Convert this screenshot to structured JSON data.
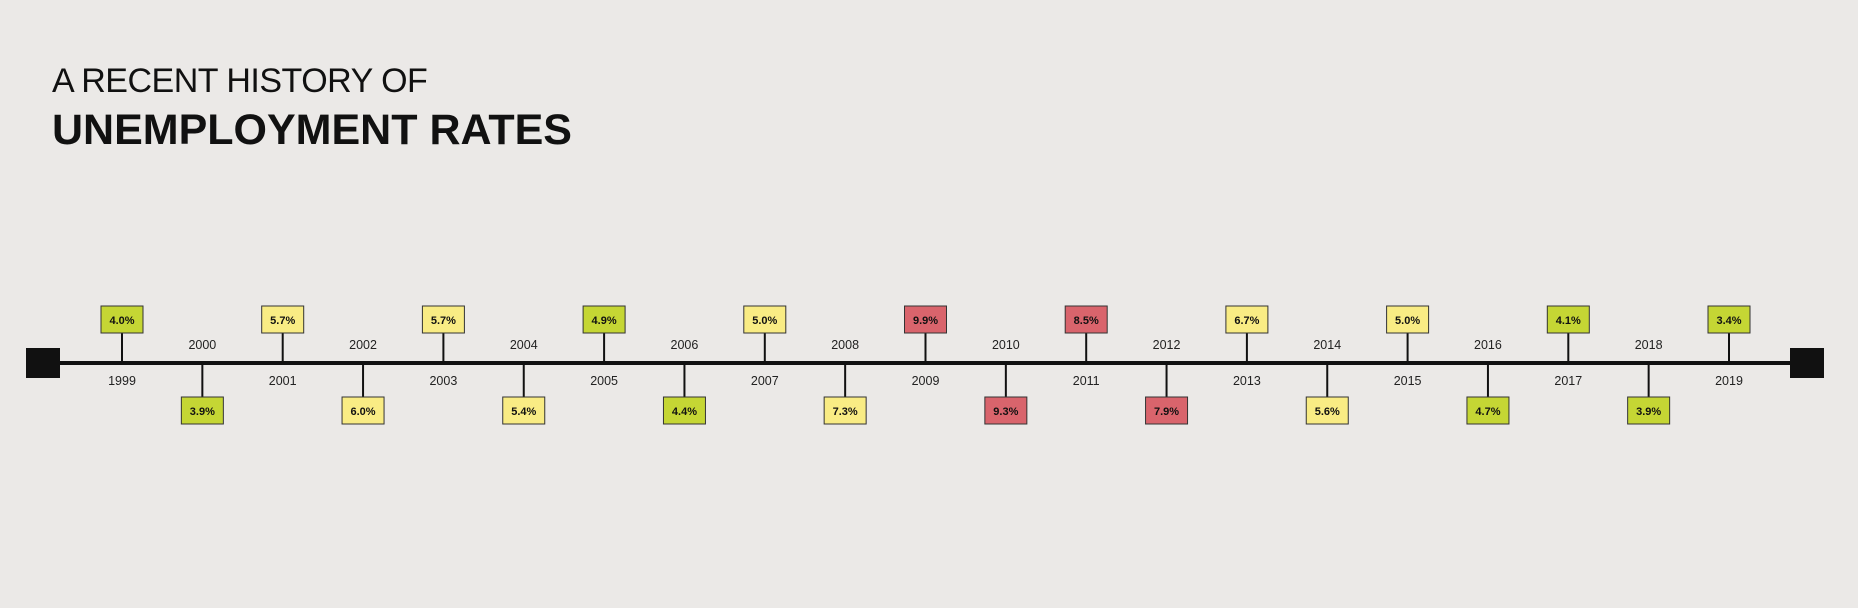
{
  "title": {
    "line1": "A RECENT HISTORY OF",
    "line2": "UNEMPLOYMENT RATES"
  },
  "colors": {
    "low": "#c5d634",
    "medium": "#f9ec84",
    "high": "#d9646c",
    "line": "#111111",
    "background": "#ebe9e7"
  },
  "chart_data": {
    "type": "timeline",
    "title": "A RECENT HISTORY OF UNEMPLOYMENT RATES",
    "entries": [
      {
        "year": "1999",
        "rate": "4.0%",
        "value": 4.0,
        "level": "low"
      },
      {
        "year": "2000",
        "rate": "3.9%",
        "value": 3.9,
        "level": "low"
      },
      {
        "year": "2001",
        "rate": "5.7%",
        "value": 5.7,
        "level": "medium"
      },
      {
        "year": "2002",
        "rate": "6.0%",
        "value": 6.0,
        "level": "medium"
      },
      {
        "year": "2003",
        "rate": "5.7%",
        "value": 5.7,
        "level": "medium"
      },
      {
        "year": "2004",
        "rate": "5.4%",
        "value": 5.4,
        "level": "medium"
      },
      {
        "year": "2005",
        "rate": "4.9%",
        "value": 4.9,
        "level": "low"
      },
      {
        "year": "2006",
        "rate": "4.4%",
        "value": 4.4,
        "level": "low"
      },
      {
        "year": "2007",
        "rate": "5.0%",
        "value": 5.0,
        "level": "medium"
      },
      {
        "year": "2008",
        "rate": "7.3%",
        "value": 7.3,
        "level": "medium"
      },
      {
        "year": "2009",
        "rate": "9.9%",
        "value": 9.9,
        "level": "high"
      },
      {
        "year": "2010",
        "rate": "9.3%",
        "value": 9.3,
        "level": "high"
      },
      {
        "year": "2011",
        "rate": "8.5%",
        "value": 8.5,
        "level": "high"
      },
      {
        "year": "2012",
        "rate": "7.9%",
        "value": 7.9,
        "level": "high"
      },
      {
        "year": "2013",
        "rate": "6.7%",
        "value": 6.7,
        "level": "medium"
      },
      {
        "year": "2014",
        "rate": "5.6%",
        "value": 5.6,
        "level": "medium"
      },
      {
        "year": "2015",
        "rate": "5.0%",
        "value": 5.0,
        "level": "medium"
      },
      {
        "year": "2016",
        "rate": "4.7%",
        "value": 4.7,
        "level": "low"
      },
      {
        "year": "2017",
        "rate": "4.1%",
        "value": 4.1,
        "level": "low"
      },
      {
        "year": "2018",
        "rate": "3.9%",
        "value": 3.9,
        "level": "low"
      },
      {
        "year": "2019",
        "rate": "3.4%",
        "value": 3.4,
        "level": "low"
      }
    ]
  }
}
